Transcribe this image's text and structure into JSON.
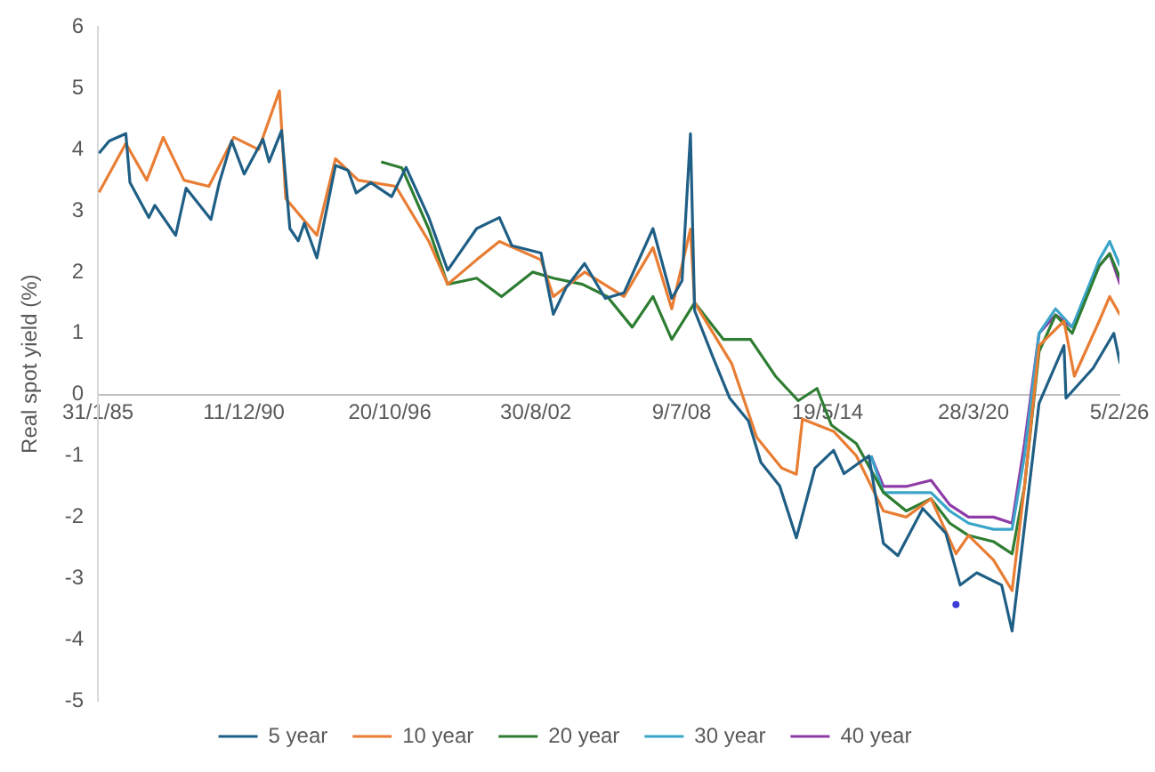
{
  "chart_data": {
    "type": "line",
    "ylabel": "Real spot yield (%)",
    "xlim": [
      "1985-01-31",
      "2026-02-05"
    ],
    "ylim": [
      -5,
      6
    ],
    "xticks": [
      {
        "value": "1985-01-31",
        "label": "31/1/85"
      },
      {
        "value": "1990-12-11",
        "label": "11/12/90"
      },
      {
        "value": "1996-10-20",
        "label": "20/10/96"
      },
      {
        "value": "2002-08-30",
        "label": "30/8/02"
      },
      {
        "value": "2008-07-09",
        "label": "9/7/08"
      },
      {
        "value": "2014-05-19",
        "label": "19/5/14"
      },
      {
        "value": "2020-03-28",
        "label": "28/3/20"
      },
      {
        "value": "2026-02-05",
        "label": "5/2/26"
      }
    ],
    "yticks": [
      -5,
      -4,
      -3,
      -2,
      -1,
      0,
      1,
      2,
      3,
      4,
      5,
      6
    ],
    "grid": false,
    "legend": "bottom",
    "line_style": "solid",
    "series": [
      {
        "name": "5 year",
        "color": "#1f5f85",
        "x": [
          "1985-02",
          "1985-07",
          "1986-03",
          "1986-05",
          "1987-02",
          "1987-05",
          "1988-03",
          "1988-08",
          "1989-08",
          "1989-12",
          "1990-06",
          "1990-12",
          "1991-09",
          "1991-12",
          "1992-06",
          "1992-10",
          "1993-02",
          "1993-05",
          "1993-11",
          "1994-08",
          "1995-02",
          "1995-06",
          "1996-01",
          "1996-11",
          "1997-06",
          "1998-05",
          "1999-02",
          "2000-04",
          "2001-03",
          "2001-09",
          "2002-11",
          "2003-05",
          "2003-11",
          "2004-08",
          "2005-06",
          "2006-03",
          "2007-05",
          "2008-02",
          "2008-07",
          "2008-11",
          "2009-01",
          "2009-10",
          "2010-06",
          "2011-03",
          "2011-09",
          "2012-06",
          "2013-02",
          "2013-11",
          "2014-08",
          "2015-01",
          "2016-01",
          "2016-08",
          "2017-03",
          "2018-03",
          "2019-02",
          "2019-09",
          "2020-05",
          "2021-05",
          "2021-10",
          "2022-01",
          "2022-11",
          "2023-11",
          "2023-12",
          "2025-01",
          "2025-11",
          "2026-02"
        ],
        "values": [
          3.94,
          4.14,
          4.26,
          3.46,
          2.89,
          3.09,
          2.6,
          3.37,
          2.86,
          3.46,
          4.14,
          3.6,
          4.17,
          3.8,
          4.31,
          2.71,
          2.51,
          2.8,
          2.23,
          3.74,
          3.66,
          3.29,
          3.46,
          3.23,
          3.71,
          2.89,
          2.03,
          2.71,
          2.89,
          2.43,
          2.31,
          1.31,
          1.74,
          2.14,
          1.57,
          1.66,
          2.71,
          1.57,
          1.86,
          4.26,
          1.37,
          0.6,
          -0.06,
          -0.43,
          -1.11,
          -1.49,
          -2.34,
          -1.2,
          -0.91,
          -1.29,
          -1.0,
          -2.43,
          -2.63,
          -1.86,
          -2.26,
          -3.11,
          -2.91,
          -3.11,
          -3.86,
          -3.0,
          -0.14,
          0.8,
          -0.06,
          0.43,
          1.0,
          0.51
        ]
      },
      {
        "name": "10 year",
        "color": "#e87d33",
        "x": [
          "1985-02",
          "1986-03",
          "1987-01",
          "1987-09",
          "1988-07",
          "1989-07",
          "1990-07",
          "1991-07",
          "1992-05",
          "1992-08",
          "1993-11",
          "1994-08",
          "1995-07",
          "1997-01",
          "1998-05",
          "1999-02",
          "2000-04",
          "2001-03",
          "2002-11",
          "2003-05",
          "2004-08",
          "2006-03",
          "2007-05",
          "2008-02",
          "2008-11",
          "2009-01",
          "2010-07",
          "2011-07",
          "2012-07",
          "2013-02",
          "2013-05",
          "2014-08",
          "2015-07",
          "2016-08",
          "2017-07",
          "2018-07",
          "2019-07",
          "2020-01",
          "2021-01",
          "2021-10",
          "2022-04",
          "2022-11",
          "2023-11",
          "2024-04",
          "2025-04",
          "2025-09",
          "2026-02"
        ],
        "values": [
          3.3,
          4.1,
          3.5,
          4.2,
          3.5,
          3.4,
          4.2,
          4.0,
          4.96,
          3.2,
          2.6,
          3.85,
          3.5,
          3.4,
          2.5,
          1.8,
          2.2,
          2.5,
          2.2,
          1.6,
          2.0,
          1.6,
          2.4,
          1.4,
          2.7,
          1.5,
          0.5,
          -0.7,
          -1.2,
          -1.3,
          -0.4,
          -0.6,
          -1.0,
          -1.9,
          -2.0,
          -1.7,
          -2.6,
          -2.3,
          -2.7,
          -3.2,
          -1.5,
          0.8,
          1.2,
          0.3,
          1.2,
          1.6,
          1.3
        ]
      },
      {
        "name": "20 year",
        "color": "#2e7d32",
        "x": [
          "1996-06",
          "1997-04",
          "1998-05",
          "1999-02",
          "2000-04",
          "2001-04",
          "2002-07",
          "2003-05",
          "2004-07",
          "2005-07",
          "2006-07",
          "2007-05",
          "2008-02",
          "2009-01",
          "2010-03",
          "2011-04",
          "2012-04",
          "2013-03",
          "2013-12",
          "2014-07",
          "2015-07",
          "2016-08",
          "2017-07",
          "2018-07",
          "2019-04",
          "2020-01",
          "2021-01",
          "2021-10",
          "2022-04",
          "2022-11",
          "2023-07",
          "2024-03",
          "2025-04",
          "2025-09",
          "2026-02"
        ],
        "values": [
          3.8,
          3.7,
          2.7,
          1.8,
          1.9,
          1.6,
          2.0,
          1.9,
          1.8,
          1.6,
          1.1,
          1.6,
          0.9,
          1.5,
          0.9,
          0.9,
          0.3,
          -0.1,
          0.1,
          -0.5,
          -0.8,
          -1.6,
          -1.9,
          -1.7,
          -2.1,
          -2.3,
          -2.4,
          -2.6,
          -1.5,
          0.7,
          1.3,
          1.0,
          2.1,
          2.3,
          1.9
        ]
      },
      {
        "name": "30 year",
        "color": "#3aa5c9",
        "x": [
          "2016-02",
          "2016-08",
          "2017-07",
          "2018-07",
          "2019-04",
          "2020-01",
          "2021-01",
          "2021-10",
          "2022-04",
          "2022-11",
          "2023-07",
          "2024-03",
          "2025-04",
          "2025-09",
          "2026-02"
        ],
        "values": [
          -1.0,
          -1.6,
          -1.6,
          -1.6,
          -1.9,
          -2.1,
          -2.2,
          -2.2,
          -1.0,
          1.0,
          1.4,
          1.1,
          2.2,
          2.5,
          2.1
        ]
      },
      {
        "name": "40 year",
        "color": "#8e3ba8",
        "x": [
          "2016-02",
          "2016-08",
          "2017-07",
          "2018-07",
          "2019-04",
          "2020-01",
          "2021-01",
          "2021-10",
          "2022-04",
          "2022-11",
          "2023-07",
          "2024-03",
          "2025-04",
          "2025-09",
          "2026-02"
        ],
        "values": [
          -1.0,
          -1.5,
          -1.5,
          -1.4,
          -1.8,
          -2.0,
          -2.0,
          -2.1,
          -0.8,
          1.0,
          1.3,
          1.1,
          2.1,
          2.3,
          1.8
        ]
      },
      {
        "type": "scatter",
        "color": "#3b3bd6",
        "x": [
          "2019-07"
        ],
        "values": [
          -3.43
        ]
      }
    ]
  }
}
